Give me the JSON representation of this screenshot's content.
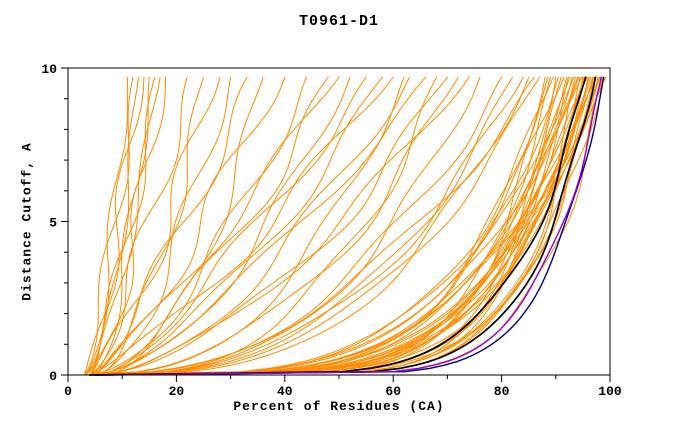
{
  "chart_data": {
    "type": "line",
    "title": "T0961-D1",
    "xlabel": "Percent of Residues (CA)",
    "ylabel": "Distance Cutoff, A",
    "xlim": [
      0,
      100
    ],
    "ylim": [
      0,
      10
    ],
    "x_major_ticks": [
      0,
      20,
      40,
      60,
      80,
      100
    ],
    "x_minor_step": 10,
    "y_major_ticks": [
      0,
      5,
      10
    ],
    "y_minor_step": 1,
    "grid": false,
    "legend": "none",
    "curve_top_y": 9.7,
    "color_map": {
      "o": "#ff8c00",
      "k": "#000000",
      "b": "#000080",
      "p": "#9400d3"
    },
    "width_map": {
      "o": 1.0,
      "k": 1.7,
      "b": 1.4,
      "p": 1.4
    },
    "series_format": [
      "color_code",
      "x_at_y0_percent",
      "x_max_percent",
      "shape_exponent",
      "wiggle_amp_percent"
    ],
    "series": [
      [
        "o",
        3,
        11,
        0.55,
        1.2
      ],
      [
        "o",
        3,
        12,
        0.7,
        1.5
      ],
      [
        "o",
        4,
        13,
        0.6,
        1.0
      ],
      [
        "o",
        3,
        14,
        0.8,
        1.8
      ],
      [
        "o",
        4,
        15,
        0.5,
        1.3
      ],
      [
        "o",
        3,
        16,
        0.65,
        1.6
      ],
      [
        "o",
        4,
        17,
        0.75,
        1.1
      ],
      [
        "o",
        3,
        18,
        0.6,
        2.0
      ],
      [
        "o",
        4,
        22,
        0.7,
        2.2
      ],
      [
        "o",
        5,
        25,
        0.55,
        1.8
      ],
      [
        "o",
        4,
        28,
        0.8,
        2.5
      ],
      [
        "o",
        5,
        30,
        0.6,
        2.0
      ],
      [
        "o",
        4,
        33,
        0.75,
        2.4
      ],
      [
        "o",
        6,
        36,
        0.5,
        1.6
      ],
      [
        "o",
        5,
        40,
        0.85,
        2.8
      ],
      [
        "o",
        4,
        44,
        0.6,
        2.2
      ],
      [
        "o",
        6,
        48,
        0.7,
        2.6
      ],
      [
        "o",
        5,
        50,
        0.9,
        2.0
      ],
      [
        "o",
        4,
        52,
        0.55,
        1.8
      ],
      [
        "o",
        6,
        55,
        0.75,
        2.4
      ],
      [
        "o",
        5,
        58,
        0.65,
        2.0
      ],
      [
        "o",
        4,
        60,
        0.8,
        2.6
      ],
      [
        "o",
        6,
        63,
        0.6,
        2.2
      ],
      [
        "o",
        5,
        66,
        0.7,
        1.8
      ],
      [
        "o",
        4,
        70,
        0.55,
        2.4
      ],
      [
        "o",
        6,
        74,
        0.65,
        2.0
      ],
      [
        "o",
        4,
        62,
        0.4,
        1.5
      ],
      [
        "o",
        5,
        68,
        0.35,
        1.8
      ],
      [
        "o",
        4,
        72,
        0.45,
        2.0
      ],
      [
        "o",
        6,
        76,
        0.38,
        1.6
      ],
      [
        "o",
        5,
        80,
        0.42,
        1.9
      ],
      [
        "o",
        4,
        82,
        0.36,
        1.4
      ],
      [
        "o",
        6,
        84,
        0.4,
        1.7
      ],
      [
        "o",
        5,
        85,
        0.34,
        1.5
      ],
      [
        "o",
        4,
        86,
        0.44,
        1.8
      ],
      [
        "o",
        6,
        87,
        0.38,
        1.3
      ],
      [
        "o",
        3,
        88,
        0.13,
        0.6
      ],
      [
        "o",
        5,
        88.5,
        0.2,
        0.9
      ],
      [
        "o",
        7,
        89,
        0.16,
        0.7
      ],
      [
        "o",
        4,
        89.5,
        0.24,
        1.1
      ],
      [
        "o",
        6,
        90,
        0.12,
        0.5
      ],
      [
        "o",
        8,
        90.5,
        0.22,
        1.0
      ],
      [
        "o",
        3,
        91,
        0.15,
        0.8
      ],
      [
        "o",
        5,
        91.5,
        0.26,
        1.2
      ],
      [
        "o",
        7,
        92,
        0.18,
        0.6
      ],
      [
        "o",
        4,
        92.3,
        0.14,
        0.9
      ],
      [
        "o",
        6,
        92.6,
        0.21,
        0.7
      ],
      [
        "o",
        8,
        93,
        0.17,
        1.0
      ],
      [
        "o",
        3,
        93.3,
        0.25,
        0.5
      ],
      [
        "o",
        5,
        93.6,
        0.13,
        0.8
      ],
      [
        "o",
        7,
        94,
        0.19,
        1.1
      ],
      [
        "o",
        4,
        94.2,
        0.23,
        0.6
      ],
      [
        "o",
        6,
        94.5,
        0.15,
        0.9
      ],
      [
        "o",
        8,
        94.8,
        0.27,
        0.7
      ],
      [
        "o",
        3,
        95,
        0.12,
        1.0
      ],
      [
        "o",
        5,
        95.2,
        0.2,
        0.5
      ],
      [
        "o",
        7,
        95.5,
        0.16,
        0.8
      ],
      [
        "o",
        4,
        95.8,
        0.24,
        1.1
      ],
      [
        "o",
        6,
        96,
        0.14,
        0.6
      ],
      [
        "o",
        8,
        96.2,
        0.22,
        0.9
      ],
      [
        "o",
        3,
        96.5,
        0.18,
        0.7
      ],
      [
        "o",
        5,
        96.8,
        0.13,
        1.0
      ],
      [
        "o",
        7,
        97,
        0.21,
        0.5
      ],
      [
        "o",
        4,
        97.2,
        0.17,
        0.8
      ],
      [
        "o",
        6,
        97.5,
        0.25,
        1.1
      ],
      [
        "o",
        8,
        97.8,
        0.15,
        0.6
      ],
      [
        "o",
        3,
        98,
        0.19,
        0.9
      ],
      [
        "o",
        5,
        98.2,
        0.23,
        0.7
      ],
      [
        "o",
        7,
        98.5,
        0.12,
        1.0
      ],
      [
        "o",
        4,
        98.8,
        0.2,
        0.5
      ],
      [
        "o",
        6,
        99,
        0.16,
        0.8
      ],
      [
        "o",
        5,
        99.2,
        0.24,
        0.6
      ],
      [
        "k",
        4,
        95.5,
        0.15,
        0.8
      ],
      [
        "k",
        5,
        97.3,
        0.13,
        0.6
      ],
      [
        "b",
        5,
        98.8,
        0.11,
        0.4
      ],
      [
        "p",
        6,
        98.4,
        0.12,
        0.5
      ]
    ]
  }
}
